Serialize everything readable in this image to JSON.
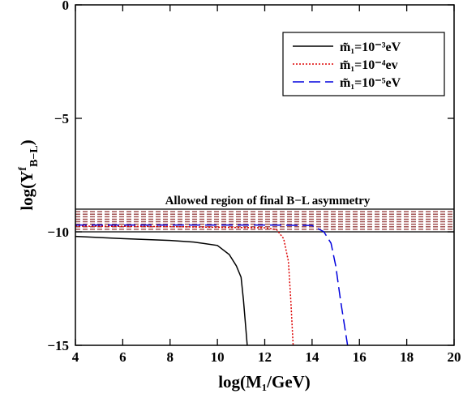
{
  "chart_data": {
    "type": "line",
    "x_label": "log(M₁/GeV)",
    "y_label_parts": [
      "log(Y",
      "f",
      "B−L",
      ")"
    ],
    "annotation": "Allowed region of final B−L asymmetry",
    "band": {
      "ylim": [
        -10,
        -9
      ],
      "edge_color": "#000000",
      "hatch_color": "#a05050"
    },
    "xlim": [
      4,
      20
    ],
    "xticks": [
      4,
      6,
      8,
      10,
      12,
      14,
      16,
      18,
      20
    ],
    "ylim": [
      -15,
      0
    ],
    "yticks": [
      {
        "value": -15,
        "label": "−15"
      },
      {
        "value": -10,
        "label": "−10"
      },
      {
        "value": -5,
        "label": "−5"
      },
      0
    ],
    "legend": "upper right",
    "series": [
      {
        "name": "m̃₁=10⁻³eV",
        "color": "#000000",
        "dash": "none",
        "x": [
          4,
          6,
          8,
          9,
          10,
          10.5,
          10.8,
          11,
          11.1,
          11.26
        ],
        "y": [
          -10.2,
          -10.3,
          -10.38,
          -10.45,
          -10.6,
          -11,
          -11.5,
          -12,
          -13,
          -15
        ]
      },
      {
        "name": "m̃₁=10⁻⁴ev",
        "color": "#dd0000",
        "dash": "2,2",
        "x": [
          4,
          8,
          10,
          12,
          12.5,
          12.8,
          12.9,
          13.0,
          13.1,
          13.2
        ],
        "y": [
          -9.75,
          -9.77,
          -9.8,
          -9.82,
          -9.9,
          -10.3,
          -10.8,
          -11.3,
          -13,
          -15
        ]
      },
      {
        "name": "m̃₁=10⁻⁵eV",
        "color": "#0000dd",
        "dash": "14,6",
        "x": [
          4,
          8,
          12,
          14,
          14.5,
          14.8,
          15,
          15.2,
          15.5
        ],
        "y": [
          -9.7,
          -9.7,
          -9.7,
          -9.72,
          -10.0,
          -10.5,
          -11.5,
          -13,
          -15
        ]
      }
    ]
  }
}
